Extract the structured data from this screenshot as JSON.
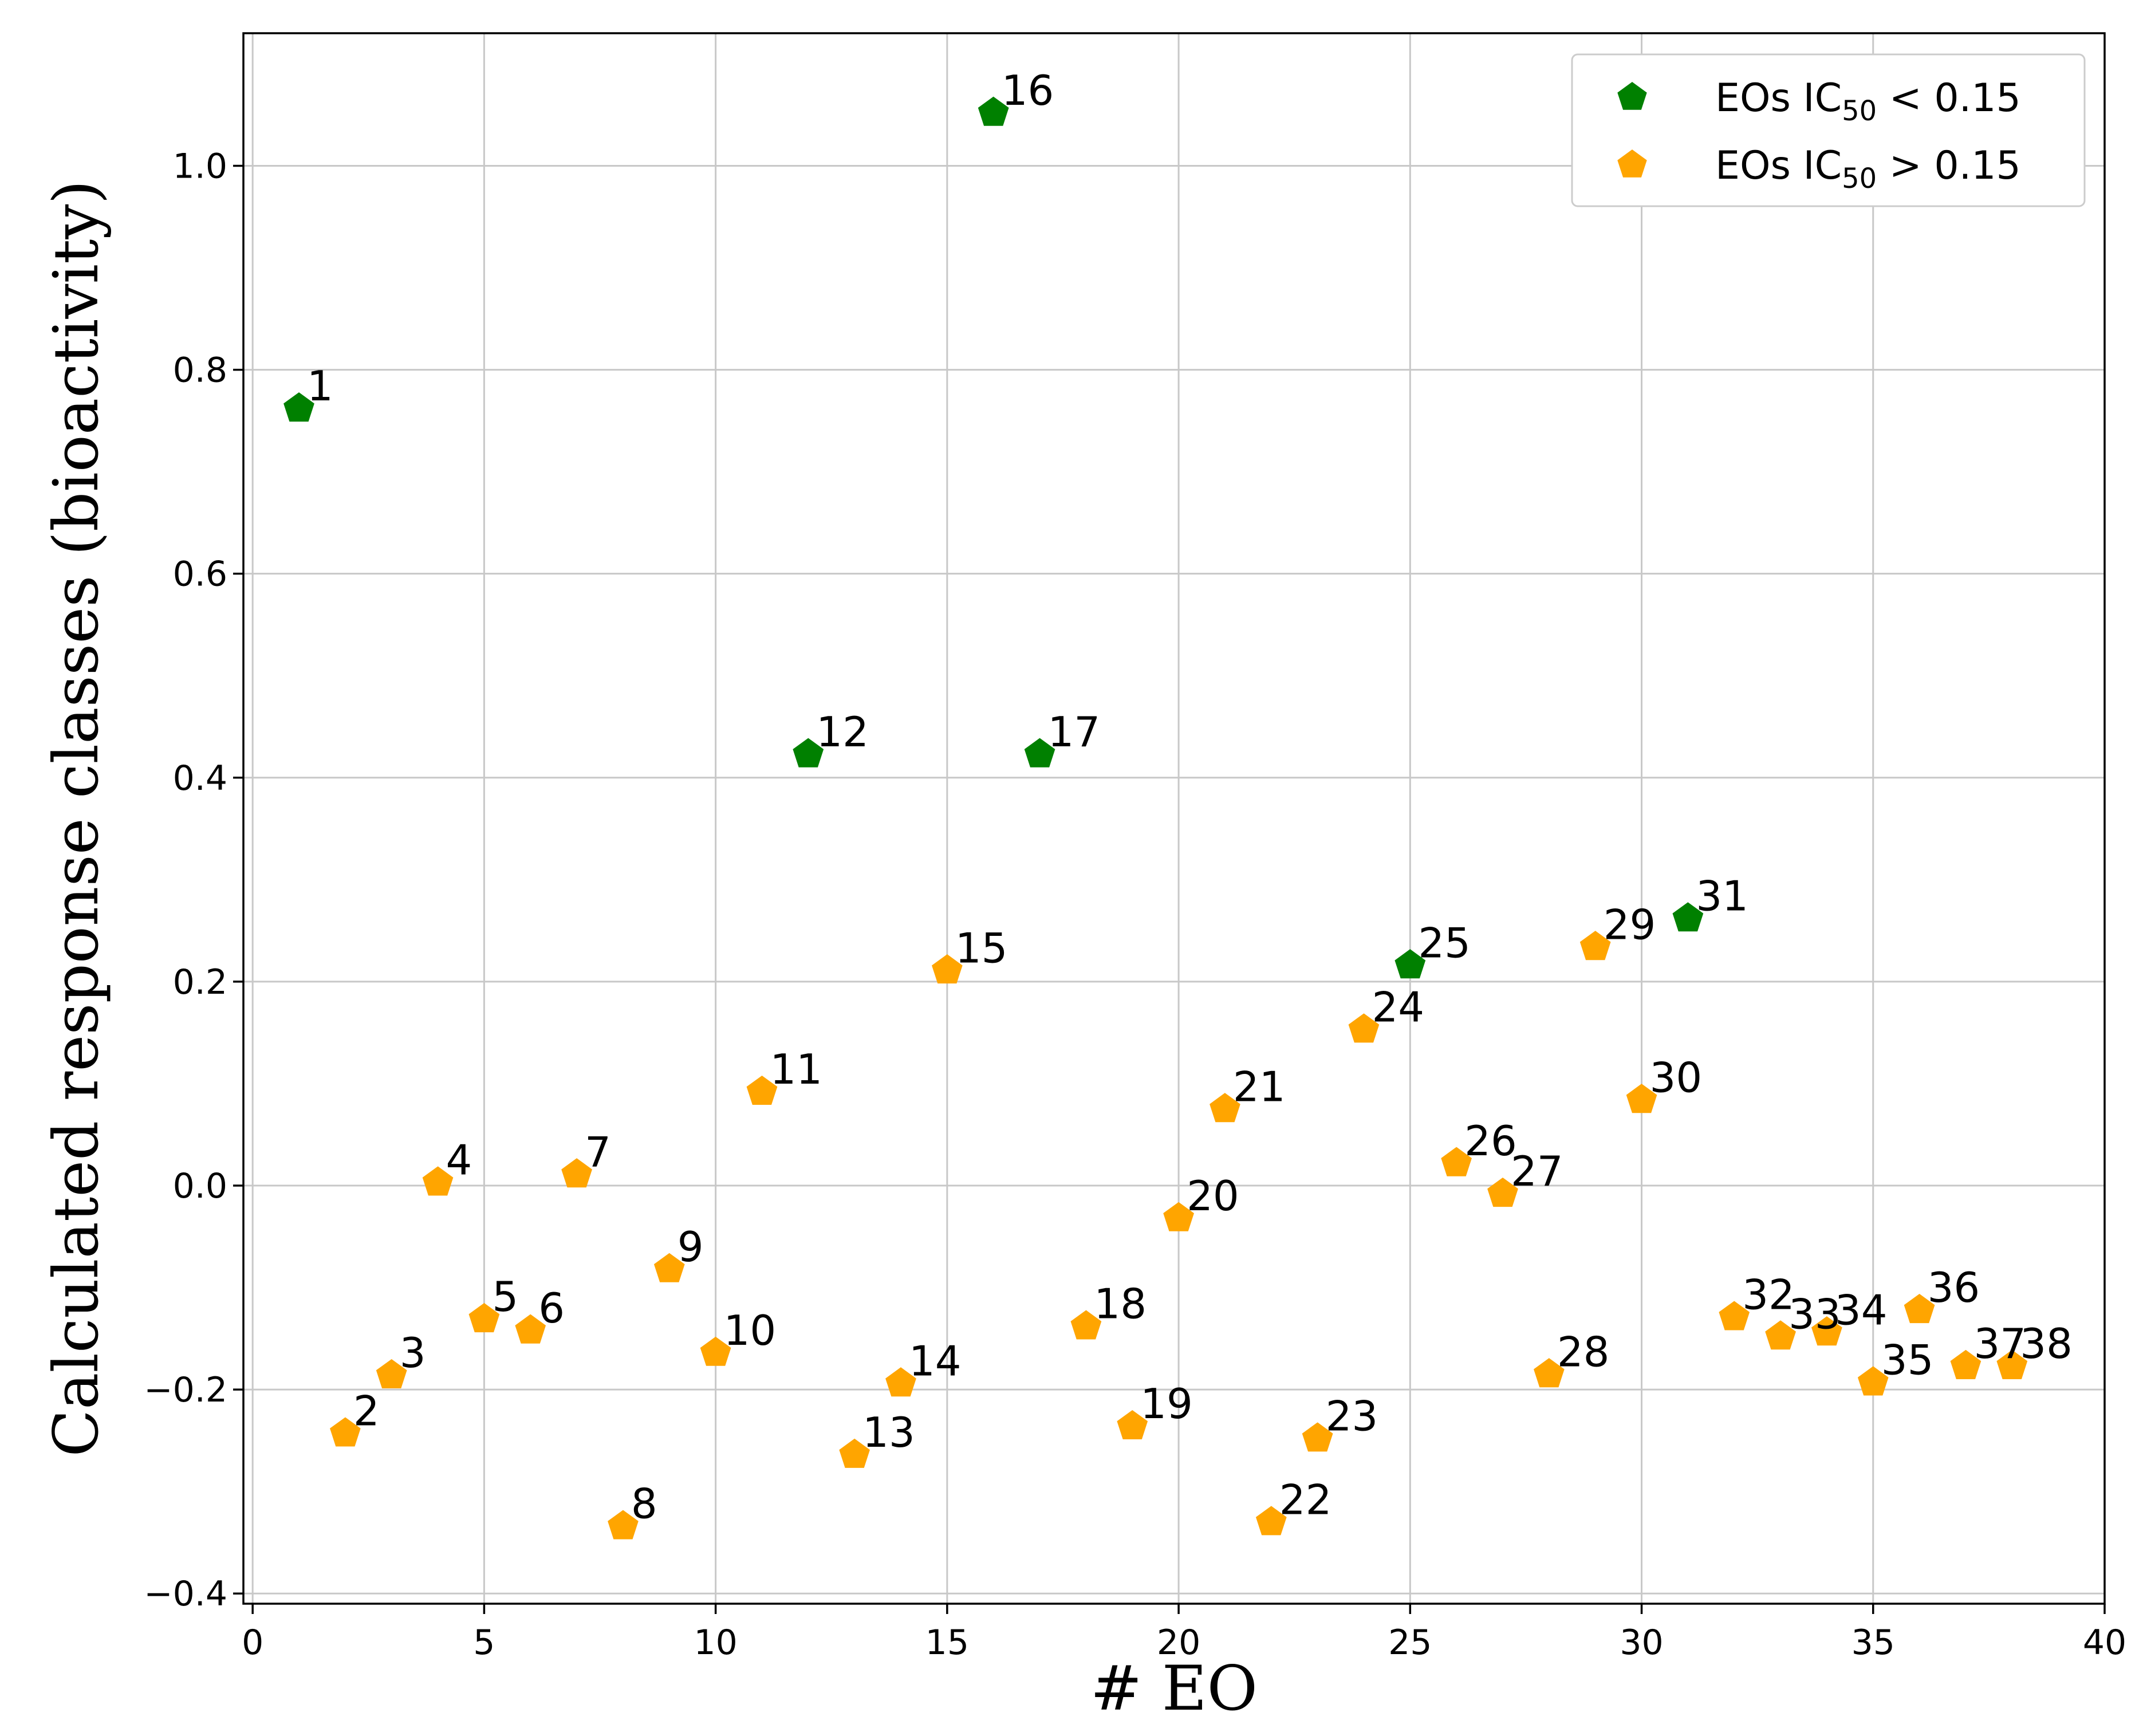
{
  "chart_data": {
    "type": "scatter",
    "title": "",
    "xlabel": "# EO",
    "ylabel": "Calculated response classes (bioactivity)",
    "xlim": [
      -0.2,
      40
    ],
    "ylim": [
      -0.41,
      1.13
    ],
    "xticks": [
      0,
      5,
      10,
      15,
      20,
      25,
      30,
      35,
      40
    ],
    "yticks": [
      -0.4,
      -0.2,
      0.0,
      0.2,
      0.4,
      0.6,
      0.8,
      1.0
    ],
    "xtick_labels": [
      "0",
      "5",
      "10",
      "15",
      "20",
      "25",
      "30",
      "35",
      "40"
    ],
    "ytick_labels": [
      "−0.4",
      "−0.2",
      "0.0",
      "0.2",
      "0.4",
      "0.6",
      "0.8",
      "1.0"
    ],
    "grid": true,
    "legend_position": "top-right",
    "series": [
      {
        "name": "EOs IC50 < 0.15",
        "legend_main": "EOs IC",
        "legend_sub": "50",
        "legend_tail": " < 0.15",
        "color": "#008000",
        "marker": "pentagon",
        "points": [
          {
            "x": 1,
            "y": 0.762,
            "label": "1"
          },
          {
            "x": 12,
            "y": 0.423,
            "label": "12"
          },
          {
            "x": 16,
            "y": 1.052,
            "label": "16"
          },
          {
            "x": 17,
            "y": 0.423,
            "label": "17"
          },
          {
            "x": 25,
            "y": 0.216,
            "label": "25"
          },
          {
            "x": 31,
            "y": 0.262,
            "label": "31"
          }
        ]
      },
      {
        "name": "EOs IC50 > 0.15",
        "legend_main": "EOs IC",
        "legend_sub": "50",
        "legend_tail": " > 0.15",
        "color": "#ffa500",
        "marker": "pentagon",
        "points": [
          {
            "x": 2,
            "y": -0.243,
            "label": "2"
          },
          {
            "x": 3,
            "y": -0.186,
            "label": "3"
          },
          {
            "x": 4,
            "y": 0.003,
            "label": "4"
          },
          {
            "x": 5,
            "y": -0.131,
            "label": "5"
          },
          {
            "x": 6,
            "y": -0.142,
            "label": "6"
          },
          {
            "x": 7,
            "y": 0.011,
            "label": "7"
          },
          {
            "x": 8,
            "y": -0.334,
            "label": "8"
          },
          {
            "x": 9,
            "y": -0.082,
            "label": "9"
          },
          {
            "x": 10,
            "y": -0.164,
            "label": "10"
          },
          {
            "x": 11,
            "y": 0.092,
            "label": "11"
          },
          {
            "x": 13,
            "y": -0.264,
            "label": "13"
          },
          {
            "x": 14,
            "y": -0.194,
            "label": "14"
          },
          {
            "x": 15,
            "y": 0.211,
            "label": "15"
          },
          {
            "x": 18,
            "y": -0.138,
            "label": "18"
          },
          {
            "x": 19,
            "y": -0.236,
            "label": "19"
          },
          {
            "x": 20,
            "y": -0.032,
            "label": "20"
          },
          {
            "x": 21,
            "y": 0.075,
            "label": "21"
          },
          {
            "x": 22,
            "y": -0.33,
            "label": "22"
          },
          {
            "x": 23,
            "y": -0.248,
            "label": "23"
          },
          {
            "x": 24,
            "y": 0.153,
            "label": "24"
          },
          {
            "x": 26,
            "y": 0.022,
            "label": "26"
          },
          {
            "x": 27,
            "y": -0.008,
            "label": "27"
          },
          {
            "x": 28,
            "y": -0.185,
            "label": "28"
          },
          {
            "x": 29,
            "y": 0.234,
            "label": "29"
          },
          {
            "x": 30,
            "y": 0.084,
            "label": "30"
          },
          {
            "x": 32,
            "y": -0.129,
            "label": "32"
          },
          {
            "x": 33,
            "y": -0.148,
            "label": "33"
          },
          {
            "x": 34,
            "y": -0.144,
            "label": "34"
          },
          {
            "x": 35,
            "y": -0.193,
            "label": "35"
          },
          {
            "x": 36,
            "y": -0.122,
            "label": "36"
          },
          {
            "x": 37,
            "y": -0.177,
            "label": "37"
          },
          {
            "x": 38,
            "y": -0.177,
            "label": "38"
          }
        ]
      }
    ]
  }
}
